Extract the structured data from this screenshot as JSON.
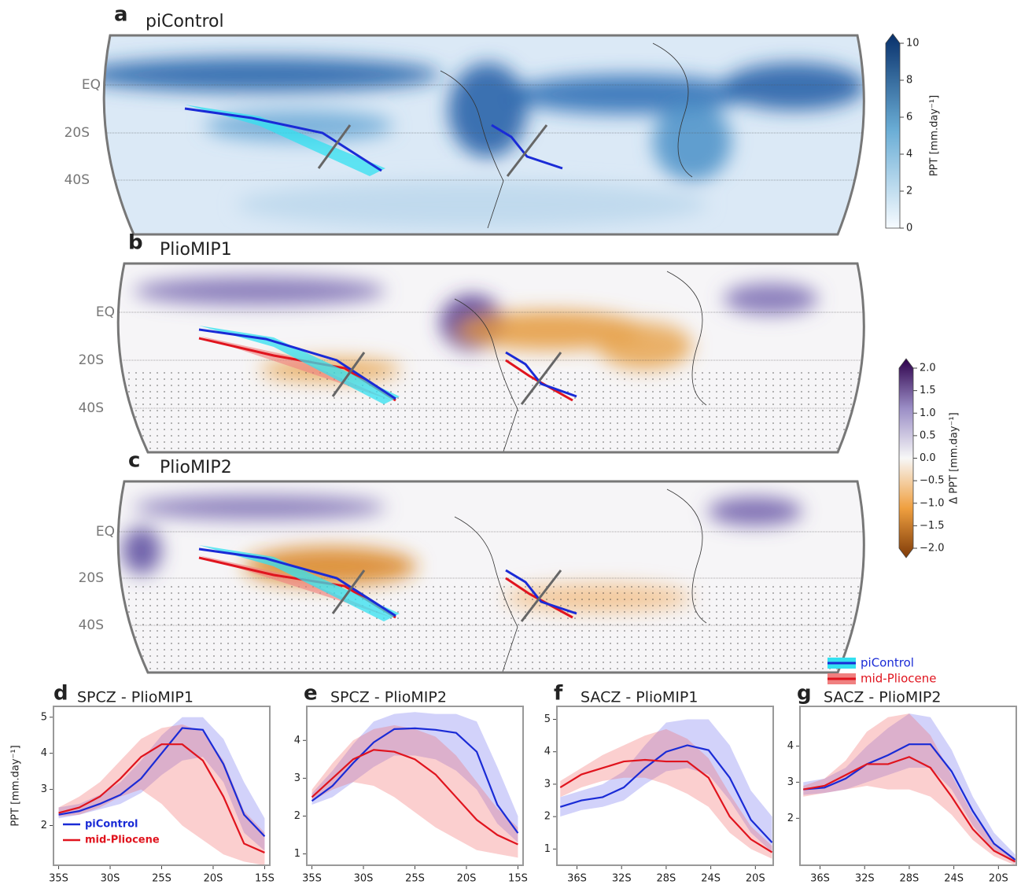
{
  "maps": [
    {
      "panel": "a",
      "title": "piControl",
      "lat_labels": [
        "EQ",
        "20S",
        "40S"
      ]
    },
    {
      "panel": "b",
      "title": "PlioMIP1",
      "lat_labels": [
        "EQ",
        "20S",
        "40S"
      ]
    },
    {
      "panel": "c",
      "title": "PlioMIP2",
      "lat_labels": [
        "EQ",
        "20S",
        "40S"
      ]
    }
  ],
  "colorbars": [
    {
      "label": "PPT [mm.day⁻¹]",
      "lim": [
        0,
        10
      ],
      "ticks": [
        0,
        2,
        4,
        6,
        8,
        10
      ]
    },
    {
      "label": "Δ PPT [mm.day⁻¹]",
      "lim": [
        -2,
        2
      ],
      "ticks": [
        {
          "value": -2,
          "label": "−2.0"
        },
        {
          "value": -1.5,
          "label": "−1.5"
        },
        {
          "value": -1,
          "label": "−1.0"
        },
        {
          "value": -0.5,
          "label": "−0.5"
        },
        {
          "value": 0,
          "label": "0.0"
        },
        {
          "value": 0.5,
          "label": "0.5"
        },
        {
          "value": 1,
          "label": "1.0"
        },
        {
          "value": 1.5,
          "label": "1.5"
        },
        {
          "value": 2,
          "label": "2.0"
        }
      ]
    }
  ],
  "map_legend": [
    {
      "name": "piControl",
      "color": "#1a2bd6"
    },
    {
      "name": "mid-Pliocene",
      "color": "#e0141e"
    }
  ],
  "chart_data": [
    {
      "type": "line",
      "panel": "d",
      "title": "SPCZ - PlioMIP1",
      "ylabel": "PPT  [mm.day⁻¹]",
      "legend": "lower left",
      "x": [
        -35,
        -33,
        -31,
        -29,
        -27,
        -25,
        -23,
        -21,
        -19,
        -17,
        -15
      ],
      "xlim": [
        -35.5,
        -14.5
      ],
      "xticks": [
        {
          "value": -35,
          "label": "35S"
        },
        {
          "value": -30,
          "label": "30S"
        },
        {
          "value": -25,
          "label": "25S"
        },
        {
          "value": -20,
          "label": "20S"
        },
        {
          "value": -15,
          "label": "15S"
        }
      ],
      "ylim": [
        0.9,
        5.3
      ],
      "yticks": [
        2,
        3,
        4,
        5
      ],
      "series": [
        {
          "name": "piControl",
          "color": "#1a2bd6",
          "values": [
            2.3,
            2.4,
            2.6,
            2.85,
            3.3,
            4.0,
            4.7,
            4.65,
            3.7,
            2.3,
            1.7
          ],
          "lower": [
            2.2,
            2.3,
            2.45,
            2.6,
            2.9,
            3.4,
            3.8,
            3.9,
            3.2,
            1.8,
            1.3
          ],
          "upper": [
            2.5,
            2.6,
            2.85,
            3.2,
            3.8,
            4.5,
            5.0,
            5.0,
            4.4,
            3.2,
            2.2
          ]
        },
        {
          "name": "mid-Pliocene",
          "color": "#e0141e",
          "values": [
            2.35,
            2.5,
            2.8,
            3.3,
            3.9,
            4.25,
            4.25,
            3.8,
            2.8,
            1.5,
            1.25
          ],
          "lower": [
            2.25,
            2.3,
            2.5,
            2.8,
            3.0,
            2.6,
            2.0,
            1.6,
            1.2,
            1.0,
            0.9
          ],
          "upper": [
            2.5,
            2.8,
            3.2,
            3.8,
            4.4,
            4.7,
            4.8,
            4.6,
            3.8,
            2.4,
            1.8
          ]
        }
      ]
    },
    {
      "type": "line",
      "panel": "e",
      "title": "SPCZ - PlioMIP2",
      "x": [
        -35,
        -33,
        -31,
        -29,
        -27,
        -25,
        -23,
        -21,
        -19,
        -17,
        -15
      ],
      "xlim": [
        -35.5,
        -14.5
      ],
      "xticks": [
        {
          "value": -35,
          "label": "35S"
        },
        {
          "value": -30,
          "label": "30S"
        },
        {
          "value": -25,
          "label": "25S"
        },
        {
          "value": -20,
          "label": "20S"
        },
        {
          "value": -15,
          "label": "15S"
        }
      ],
      "ylim": [
        0.7,
        4.9
      ],
      "yticks": [
        1,
        2,
        3,
        4
      ],
      "series": [
        {
          "color": "#1a2bd6",
          "values": [
            2.4,
            2.8,
            3.4,
            3.95,
            4.3,
            4.32,
            4.28,
            4.2,
            3.7,
            2.3,
            1.55
          ],
          "lower": [
            2.3,
            2.5,
            2.9,
            3.3,
            3.6,
            3.6,
            3.5,
            3.2,
            2.7,
            1.8,
            1.3
          ],
          "upper": [
            2.6,
            3.2,
            3.9,
            4.5,
            4.7,
            4.75,
            4.7,
            4.7,
            4.5,
            3.3,
            2.0
          ]
        },
        {
          "color": "#e0141e",
          "values": [
            2.5,
            3.0,
            3.5,
            3.75,
            3.7,
            3.5,
            3.1,
            2.5,
            1.9,
            1.5,
            1.25
          ],
          "lower": [
            2.4,
            2.7,
            2.9,
            2.8,
            2.5,
            2.1,
            1.7,
            1.4,
            1.1,
            1.0,
            0.9
          ],
          "upper": [
            2.7,
            3.4,
            4.0,
            4.3,
            4.4,
            4.3,
            4.1,
            3.6,
            2.9,
            2.2,
            1.7
          ]
        }
      ]
    },
    {
      "type": "line",
      "panel": "f",
      "title": "SACZ - PlioMIP1",
      "x": [
        -37.5,
        -35.6,
        -33.7,
        -31.8,
        -29.9,
        -28,
        -26.1,
        -24.2,
        -22.3,
        -20.4,
        -18.5
      ],
      "xlim": [
        -37.8,
        -18.4
      ],
      "xticks": [
        {
          "value": -36,
          "label": "36S"
        },
        {
          "value": -32,
          "label": "32S"
        },
        {
          "value": -28,
          "label": "28S"
        },
        {
          "value": -24,
          "label": "24S"
        },
        {
          "value": -20,
          "label": "20S"
        }
      ],
      "ylim": [
        0.5,
        5.4
      ],
      "yticks": [
        1,
        2,
        3,
        4,
        5
      ],
      "series": [
        {
          "color": "#1a2bd6",
          "values": [
            2.3,
            2.5,
            2.6,
            2.9,
            3.5,
            4.0,
            4.2,
            4.05,
            3.2,
            1.9,
            1.2
          ],
          "lower": [
            2.0,
            2.2,
            2.3,
            2.5,
            3.0,
            3.4,
            3.5,
            3.3,
            2.5,
            1.5,
            0.9
          ],
          "upper": [
            2.6,
            2.8,
            3.0,
            3.4,
            4.2,
            4.9,
            5.0,
            5.0,
            4.2,
            2.8,
            2.0
          ]
        },
        {
          "color": "#e0141e",
          "values": [
            2.9,
            3.3,
            3.5,
            3.7,
            3.75,
            3.7,
            3.7,
            3.2,
            2.0,
            1.3,
            0.9
          ],
          "lower": [
            2.6,
            2.9,
            3.1,
            3.2,
            3.2,
            3.0,
            2.7,
            2.3,
            1.5,
            1.0,
            0.7
          ],
          "upper": [
            3.1,
            3.5,
            3.9,
            4.2,
            4.5,
            4.7,
            4.4,
            3.8,
            2.7,
            1.7,
            1.1
          ]
        }
      ]
    },
    {
      "type": "line",
      "panel": "g",
      "title": "SACZ - PlioMIP2",
      "x": [
        -37.5,
        -35.6,
        -33.7,
        -31.8,
        -29.9,
        -28,
        -26.1,
        -24.2,
        -22.3,
        -20.4,
        -18.5
      ],
      "xlim": [
        -37.8,
        -18.4
      ],
      "xticks": [
        {
          "value": -36,
          "label": "36S"
        },
        {
          "value": -32,
          "label": "32S"
        },
        {
          "value": -28,
          "label": "28S"
        },
        {
          "value": -24,
          "label": "24S"
        },
        {
          "value": -20,
          "label": "20S"
        }
      ],
      "ylim": [
        0.7,
        5.1
      ],
      "yticks": [
        2,
        3,
        4
      ],
      "series": [
        {
          "color": "#1a2bd6",
          "values": [
            2.8,
            2.85,
            3.1,
            3.5,
            3.75,
            4.05,
            4.05,
            3.3,
            2.2,
            1.3,
            0.85
          ],
          "lower": [
            2.65,
            2.7,
            2.8,
            3.0,
            3.2,
            3.4,
            3.4,
            2.8,
            1.8,
            1.1,
            0.75
          ],
          "upper": [
            3.0,
            3.1,
            3.4,
            4.0,
            4.5,
            4.9,
            4.8,
            3.9,
            2.6,
            1.6,
            1.0
          ]
        },
        {
          "color": "#e0141e",
          "values": [
            2.8,
            2.9,
            3.2,
            3.5,
            3.5,
            3.7,
            3.4,
            2.6,
            1.7,
            1.1,
            0.8
          ],
          "lower": [
            2.6,
            2.7,
            2.8,
            2.9,
            2.8,
            2.8,
            2.6,
            2.1,
            1.4,
            0.95,
            0.7
          ],
          "upper": [
            2.9,
            3.1,
            3.6,
            4.4,
            4.8,
            4.9,
            4.3,
            3.2,
            2.1,
            1.3,
            0.9
          ]
        }
      ]
    }
  ]
}
